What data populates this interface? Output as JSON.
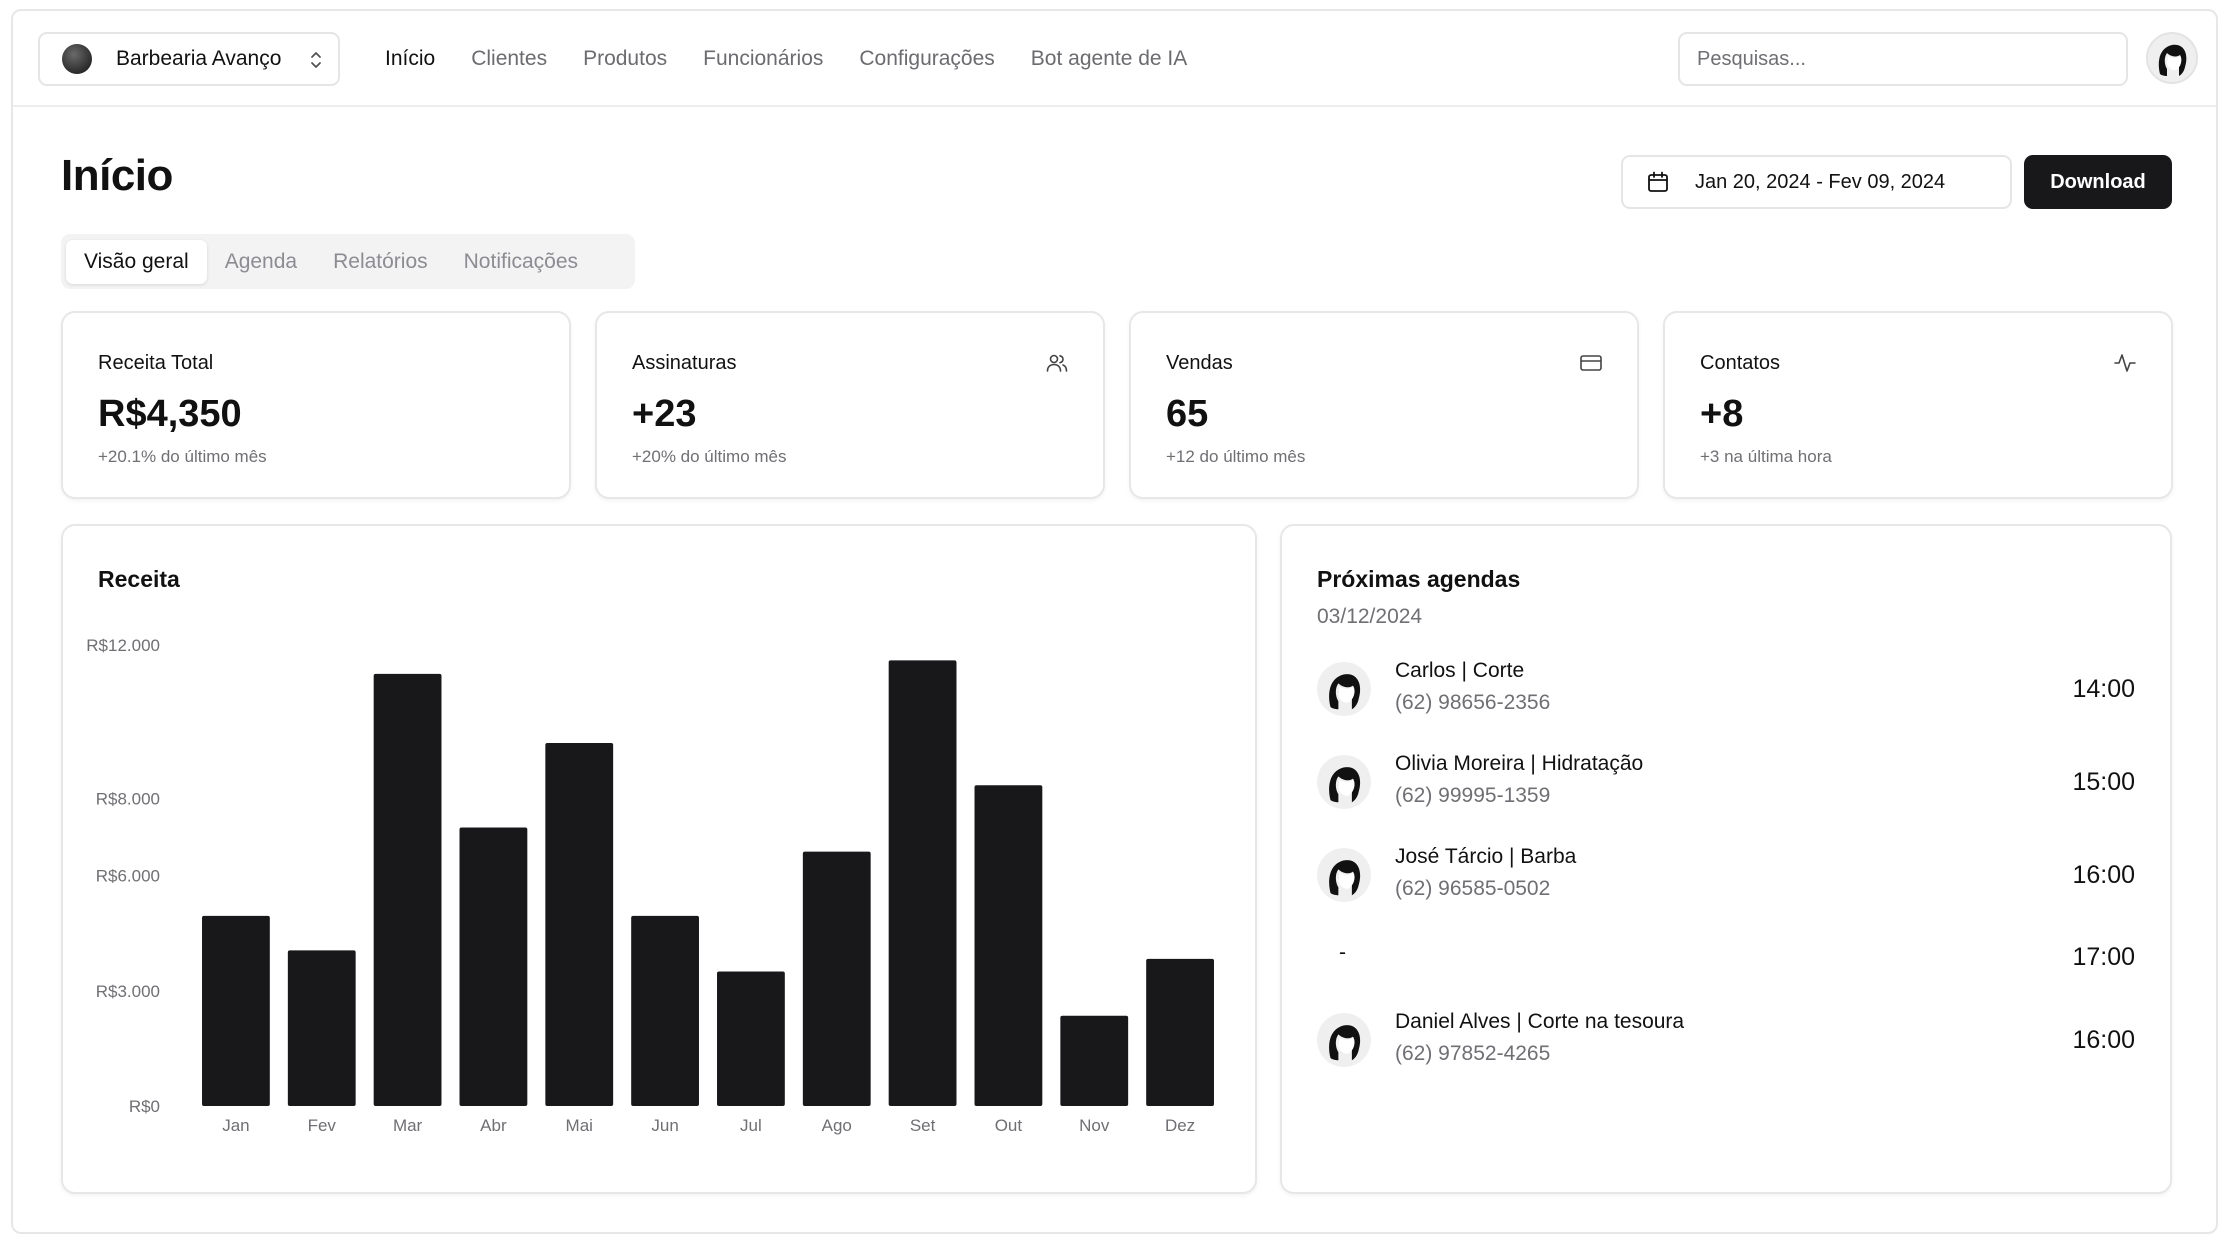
{
  "store": {
    "name": "Barbearia Avanço"
  },
  "nav": {
    "items": [
      {
        "label": "Início",
        "active": true
      },
      {
        "label": "Clientes"
      },
      {
        "label": "Produtos"
      },
      {
        "label": "Funcionários"
      },
      {
        "label": "Configurações"
      },
      {
        "label": "Bot agente de IA"
      }
    ]
  },
  "search": {
    "placeholder": "Pesquisas..."
  },
  "header": {
    "title": "Início",
    "date_range": "Jan 20, 2024 - Fev 09, 2024",
    "download_label": "Download"
  },
  "tabs": [
    {
      "label": "Visão geral",
      "active": true
    },
    {
      "label": "Agenda"
    },
    {
      "label": "Relatórios"
    },
    {
      "label": "Notificações"
    }
  ],
  "stats": [
    {
      "title": "Receita Total",
      "value": "R$4,350",
      "sub": "+20.1% do último mês",
      "icon": ""
    },
    {
      "title": "Assinaturas",
      "value": "+23",
      "sub": "+20% do último mês",
      "icon": "users-icon"
    },
    {
      "title": "Vendas",
      "value": "65",
      "sub": "+12 do último mês",
      "icon": "credit-card-icon"
    },
    {
      "title": "Contatos",
      "value": "+8",
      "sub": "+3 na última hora",
      "icon": "activity-icon"
    }
  ],
  "chart_card": {
    "title": "Receita"
  },
  "chart_data": {
    "type": "bar",
    "categories": [
      "Jan",
      "Fev",
      "Mar",
      "Abr",
      "Mai",
      "Jun",
      "Jul",
      "Ago",
      "Set",
      "Out",
      "Nov",
      "Dez"
    ],
    "values": [
      4950,
      4050,
      11250,
      7250,
      9450,
      4950,
      3500,
      6620,
      11600,
      8350,
      2350,
      3830
    ],
    "y_ticks": [
      {
        "value": 0,
        "label": "R$0"
      },
      {
        "value": 3000,
        "label": "R$3.000"
      },
      {
        "value": 6000,
        "label": "R$6.000"
      },
      {
        "value": 8000,
        "label": "R$8.000"
      },
      {
        "value": 12000,
        "label": "R$12.000"
      }
    ],
    "ylim": [
      0,
      12000
    ],
    "grid": false,
    "colors": {
      "bar": "#18181b",
      "tick": "#6f6f74"
    }
  },
  "schedule": {
    "title": "Próximas agendas",
    "date": "03/12/2024",
    "items": [
      {
        "name": "Carlos | Corte",
        "phone": "(62) 98656-2356",
        "time": "14:00",
        "has_client": true
      },
      {
        "name": "Olivia Moreira | Hidratação",
        "phone": "(62) 99995-1359",
        "time": "15:00",
        "has_client": true
      },
      {
        "name": "José Tárcio | Barba",
        "phone": "(62) 96585-0502",
        "time": "16:00",
        "has_client": true
      },
      {
        "name": "-",
        "phone": "",
        "time": "17:00",
        "has_client": false
      },
      {
        "name": "Daniel Alves | Corte na tesoura",
        "phone": "(62) 97852-4265",
        "time": "16:00",
        "has_client": true
      }
    ]
  }
}
